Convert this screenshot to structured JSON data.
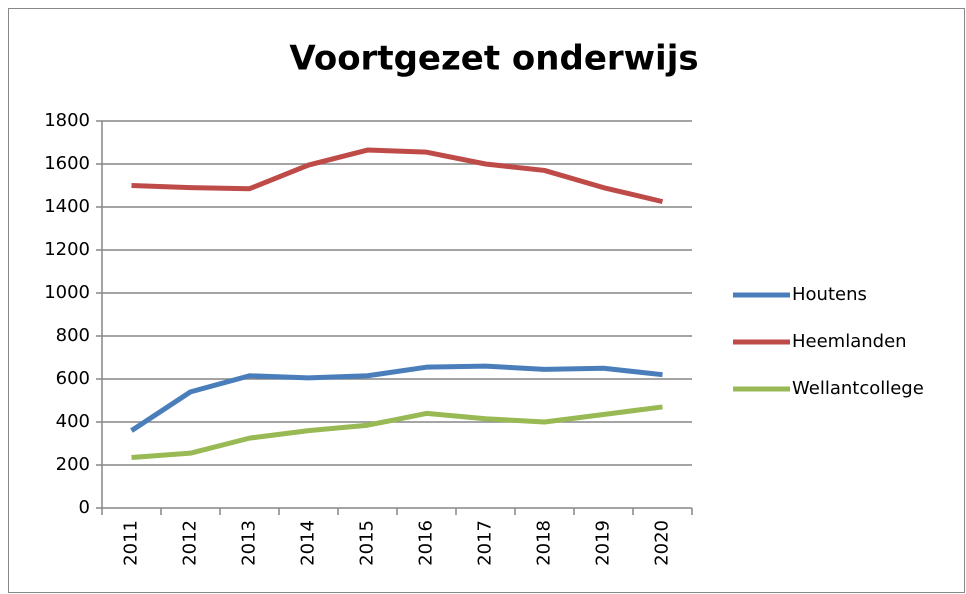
{
  "chart_data": {
    "type": "line",
    "title": "Voortgezet onderwijs",
    "categories": [
      "2011",
      "2012",
      "2013",
      "2014",
      "2015",
      "2016",
      "2017",
      "2018",
      "2019",
      "2020"
    ],
    "series": [
      {
        "name": "Houtens",
        "color": "#4a7ebb",
        "values": [
          360,
          540,
          615,
          605,
          615,
          655,
          660,
          645,
          650,
          620
        ]
      },
      {
        "name": "Heemlanden",
        "color": "#be4b48",
        "values": [
          1500,
          1490,
          1485,
          1595,
          1665,
          1655,
          1600,
          1570,
          1490,
          1425
        ]
      },
      {
        "name": "Wellantcollege",
        "color": "#98b954",
        "values": [
          235,
          255,
          325,
          360,
          385,
          440,
          415,
          400,
          435,
          470
        ]
      }
    ],
    "ylim": [
      0,
      1800
    ],
    "yticks": [
      0,
      200,
      400,
      600,
      800,
      1000,
      1200,
      1400,
      1600,
      1800
    ],
    "grid": true,
    "legend": "right"
  }
}
